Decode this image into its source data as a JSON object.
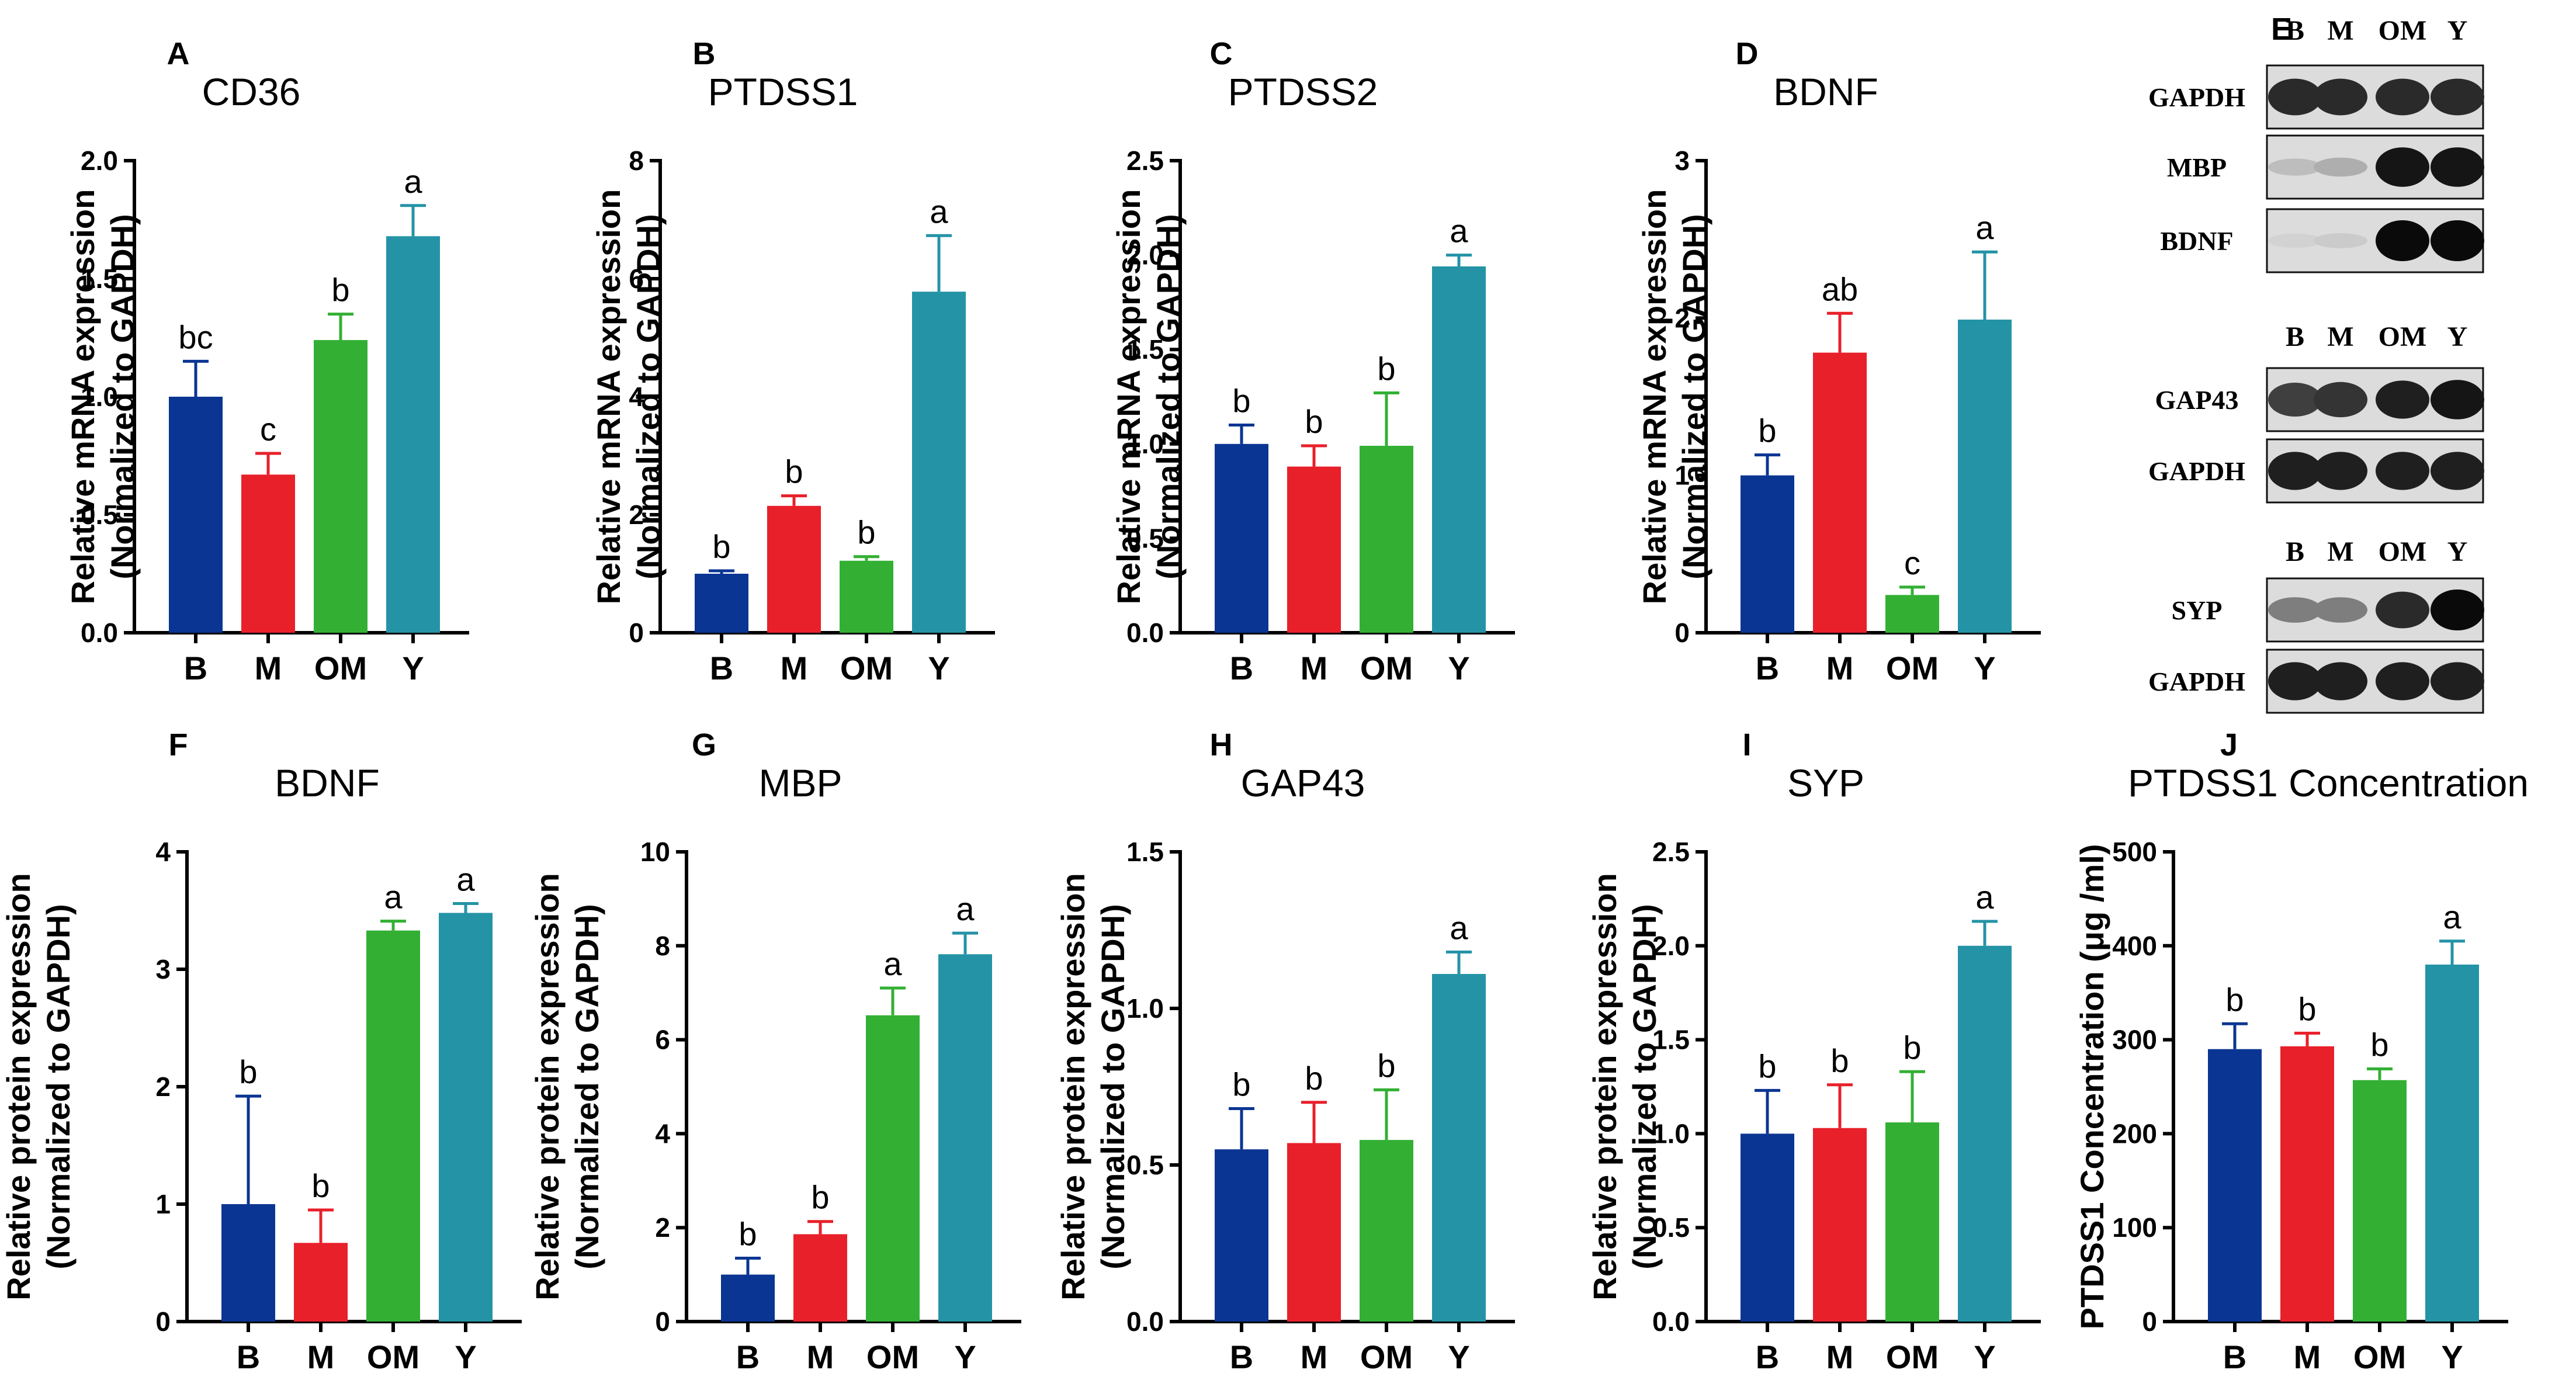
{
  "colors": {
    "B": "#0a3592",
    "M": "#e8202a",
    "OM": "#33b034",
    "Y": "#2493a6"
  },
  "chart_data": [
    {
      "type": "bar",
      "panel": "A",
      "title": "CD36",
      "ylabel": [
        "Relative mRNA expression",
        "(Normalized to GAPDH)"
      ],
      "categories": [
        "B",
        "M",
        "OM",
        "Y"
      ],
      "values": [
        1.0,
        0.67,
        1.24,
        1.68
      ],
      "errors": [
        0.15,
        0.09,
        0.11,
        0.13
      ],
      "letters": [
        "bc",
        "c",
        "b",
        "a"
      ],
      "ylim": [
        0,
        2.0
      ],
      "yticks": [
        "0.0",
        "0.5",
        "1.0",
        "1.5",
        "2.0"
      ]
    },
    {
      "type": "bar",
      "panel": "B",
      "title": "PTDSS1",
      "ylabel": [
        "Relative mRNA expression",
        "(Normalized to GAPDH)"
      ],
      "categories": [
        "B",
        "M",
        "OM",
        "Y"
      ],
      "values": [
        1.0,
        2.15,
        1.22,
        5.78
      ],
      "errors": [
        0.05,
        0.17,
        0.07,
        0.95
      ],
      "letters": [
        "b",
        "b",
        "b",
        "a"
      ],
      "ylim": [
        0,
        8
      ],
      "yticks": [
        "0",
        "2",
        "4",
        "6",
        "8"
      ]
    },
    {
      "type": "bar",
      "panel": "C",
      "title": "PTDSS2",
      "ylabel": [
        "Relative mRNA expression",
        "(Normalized to GAPDH)"
      ],
      "categories": [
        "B",
        "M",
        "OM",
        "Y"
      ],
      "values": [
        1.0,
        0.88,
        0.99,
        1.94
      ],
      "errors": [
        0.1,
        0.11,
        0.28,
        0.06
      ],
      "letters": [
        "b",
        "b",
        "b",
        "a"
      ],
      "ylim": [
        0,
        2.5
      ],
      "yticks": [
        "0.0",
        "0.5",
        "1.0",
        "1.5",
        "2.0",
        "2.5"
      ]
    },
    {
      "type": "bar",
      "panel": "D",
      "title": "BDNF",
      "ylabel": [
        "Relative mRNA expression",
        "(Normalized to GAPDH)"
      ],
      "categories": [
        "B",
        "M",
        "OM",
        "Y"
      ],
      "values": [
        1.0,
        1.78,
        0.24,
        1.99
      ],
      "errors": [
        0.13,
        0.25,
        0.05,
        0.43
      ],
      "letters": [
        "b",
        "ab",
        "c",
        "a"
      ],
      "ylim": [
        0,
        3
      ],
      "yticks": [
        "0",
        "1",
        "2",
        "3"
      ]
    },
    {
      "type": "bar",
      "panel": "F",
      "title": "BDNF",
      "ylabel": [
        "Relative protein expression",
        "(Normalized to GAPDH)"
      ],
      "categories": [
        "B",
        "M",
        "OM",
        "Y"
      ],
      "values": [
        1.0,
        0.67,
        3.33,
        3.48
      ],
      "errors": [
        0.92,
        0.28,
        0.08,
        0.08
      ],
      "letters": [
        "b",
        "b",
        "a",
        "a"
      ],
      "ylim": [
        0,
        4
      ],
      "yticks": [
        "0",
        "1",
        "2",
        "3",
        "4"
      ]
    },
    {
      "type": "bar",
      "panel": "G",
      "title": "MBP",
      "ylabel": [
        "Relative protein expression",
        "(Normalized to GAPDH)"
      ],
      "categories": [
        "B",
        "M",
        "OM",
        "Y"
      ],
      "values": [
        1.0,
        1.86,
        6.52,
        7.82
      ],
      "errors": [
        0.35,
        0.27,
        0.58,
        0.45
      ],
      "letters": [
        "b",
        "b",
        "a",
        "a"
      ],
      "ylim": [
        0,
        10
      ],
      "yticks": [
        "0",
        "2",
        "4",
        "6",
        "8",
        "10"
      ]
    },
    {
      "type": "bar",
      "panel": "H",
      "title": "GAP43",
      "ylabel": [
        "Relative protein expression",
        "(Normalized to GAPDH)"
      ],
      "categories": [
        "B",
        "M",
        "OM",
        "Y"
      ],
      "values": [
        0.55,
        0.57,
        0.58,
        1.11
      ],
      "errors": [
        0.13,
        0.13,
        0.16,
        0.07
      ],
      "letters": [
        "b",
        "b",
        "b",
        "a"
      ],
      "ylim": [
        0,
        1.5
      ],
      "yticks": [
        "0.0",
        "0.5",
        "1.0",
        "1.5"
      ]
    },
    {
      "type": "bar",
      "panel": "I",
      "title": "SYP",
      "ylabel": [
        "Relative protein expression",
        "(Normalized to GAPDH)"
      ],
      "categories": [
        "B",
        "M",
        "OM",
        "Y"
      ],
      "values": [
        1.0,
        1.03,
        1.06,
        2.0
      ],
      "errors": [
        0.23,
        0.23,
        0.27,
        0.13
      ],
      "letters": [
        "b",
        "b",
        "b",
        "a"
      ],
      "ylim": [
        0,
        2.5
      ],
      "yticks": [
        "0.0",
        "0.5",
        "1.0",
        "1.5",
        "2.0",
        "2.5"
      ]
    },
    {
      "type": "bar",
      "panel": "J",
      "title": "PTDSS1 Concentration",
      "ylabel": [
        "PTDSS1 Concentration (μg /ml)"
      ],
      "categories": [
        "B",
        "M",
        "OM",
        "Y"
      ],
      "values": [
        290,
        293,
        257,
        380
      ],
      "errors": [
        27,
        14,
        12,
        25
      ],
      "letters": [
        "b",
        "b",
        "b",
        "a"
      ],
      "ylim": [
        0,
        500
      ],
      "yticks": [
        "0",
        "100",
        "200",
        "300",
        "400",
        "500"
      ]
    }
  ],
  "western_blot": {
    "panel": "E",
    "lane_labels": [
      "B",
      "M",
      "OM",
      "Y"
    ],
    "groups": [
      {
        "rows": [
          {
            "label": "GAPDH",
            "intensity": [
              0.85,
              0.85,
              0.85,
              0.85
            ]
          },
          {
            "label": "MBP",
            "intensity": [
              0.15,
              0.22,
              0.95,
              0.95
            ]
          },
          {
            "label": "BDNF",
            "intensity": [
              0.05,
              0.08,
              1.0,
              1.0
            ]
          }
        ]
      },
      {
        "rows": [
          {
            "label": "GAP43",
            "intensity": [
              0.75,
              0.8,
              0.9,
              0.95
            ]
          },
          {
            "label": "GAPDH",
            "intensity": [
              0.9,
              0.9,
              0.9,
              0.9
            ]
          }
        ]
      },
      {
        "rows": [
          {
            "label": "SYP",
            "intensity": [
              0.45,
              0.45,
              0.85,
              1.0
            ]
          },
          {
            "label": "GAPDH",
            "intensity": [
              0.9,
              0.9,
              0.9,
              0.9
            ]
          }
        ]
      }
    ]
  }
}
